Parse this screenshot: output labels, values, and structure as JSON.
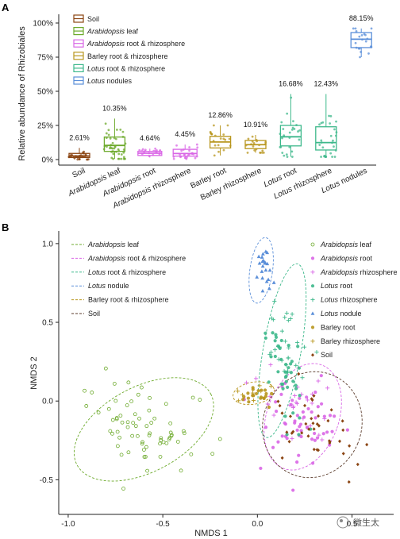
{
  "chart_data": [
    {
      "panel": "A",
      "type": "box",
      "ylabel": "Relative abundance of Rhizobiales",
      "yticks": [
        "0%",
        "25%",
        "50%",
        "75%",
        "100%"
      ],
      "ylim": [
        0,
        100
      ],
      "legend_items": [
        {
          "label": "Soil",
          "color": "#8B4513"
        },
        {
          "label": "Arabidopsis leaf",
          "color": "#6DAA2C",
          "italic_part": "Arabidopsis"
        },
        {
          "label": "Arabidopsis root & rhizosphere",
          "color": "#D966E6",
          "italic_part": "Arabidopsis"
        },
        {
          "label": "Barley root & rhizosphere",
          "color": "#B8961E"
        },
        {
          "label": "Lotus root & rhizosphere",
          "color": "#3DB88B",
          "italic_part": "Lotus"
        },
        {
          "label": "Lotus nodules",
          "color": "#5B8FD9",
          "italic_part": "Lotus"
        }
      ],
      "categories": [
        {
          "label": "Soil",
          "color": "#8B4513",
          "median_label": "2.61%",
          "median": 2.61,
          "q1": 1.5,
          "q3": 4.5,
          "whisker_low": 0,
          "whisker_high": 8.5,
          "n_points": 28
        },
        {
          "label": "Arabidopsis leaf",
          "color": "#6DAA2C",
          "median_label": "10.35%",
          "median": 10.35,
          "q1": 6,
          "q3": 16.5,
          "whisker_low": 0.5,
          "whisker_high": 30,
          "n_points": 45
        },
        {
          "label": "Arabidopsis root",
          "color": "#D966E6",
          "median_label": "4.64%",
          "median": 4.64,
          "q1": 3,
          "q3": 6,
          "whisker_low": 1.5,
          "whisker_high": 8,
          "n_points": 18
        },
        {
          "label": "Arabidopsis rhizosphere",
          "color": "#D966E6",
          "median_label": "4.45%",
          "median": 4.45,
          "q1": 2.5,
          "q3": 7.5,
          "whisker_low": 0.5,
          "whisker_high": 11,
          "n_points": 25
        },
        {
          "label": "Barley root",
          "color": "#B8961E",
          "median_label": "12.86%",
          "median": 12.86,
          "q1": 8.5,
          "q3": 17,
          "whisker_low": 3,
          "whisker_high": 25,
          "n_points": 20
        },
        {
          "label": "Barley rhizosphere",
          "color": "#B8961E",
          "median_label": "10.91%",
          "median": 10.91,
          "q1": 8,
          "q3": 14,
          "whisker_low": 5,
          "whisker_high": 18,
          "n_points": 20
        },
        {
          "label": "Lotus root",
          "color": "#3DB88B",
          "median_label": "16.68%",
          "median": 16.68,
          "q1": 10,
          "q3": 25,
          "whisker_low": 2,
          "whisker_high": 48,
          "n_points": 26
        },
        {
          "label": "Lotus rhizosphere",
          "color": "#3DB88B",
          "median_label": "12.43%",
          "median": 12.43,
          "q1": 7,
          "q3": 24,
          "whisker_low": 2,
          "whisker_high": 48,
          "n_points": 28
        },
        {
          "label": "Lotus nodules",
          "color": "#5B8FD9",
          "median_label": "88.15%",
          "median": 88.15,
          "q1": 82,
          "q3": 93,
          "whisker_low": 75,
          "whisker_high": 96,
          "n_points": 20
        }
      ]
    },
    {
      "panel": "B",
      "type": "scatter",
      "xlabel": "NMDS 1",
      "ylabel": "NMDS 2",
      "xlim": [
        -1.05,
        0.72
      ],
      "ylim": [
        -0.72,
        1.08
      ],
      "xticks": [
        "-1.0",
        "-0.5",
        "0.0",
        "0.5"
      ],
      "xtick_values": [
        -1.0,
        -0.5,
        0.0,
        0.5
      ],
      "yticks": [
        "-0.5",
        "0.0",
        "0.5",
        "1.0"
      ],
      "ytick_values": [
        -0.5,
        0.0,
        0.5,
        1.0
      ],
      "ellipse_legend": [
        {
          "label": "Arabidopsis leaf",
          "color": "#6DAA2C",
          "italic_part": "Arabidopsis"
        },
        {
          "label": "Arabidopsis root & rhizosphere",
          "color": "#D966E6",
          "italic_part": "Arabidopsis"
        },
        {
          "label": "Lotus root & rhizosphere",
          "color": "#3DB88B",
          "italic_part": "Lotus"
        },
        {
          "label": "Lotus nodule",
          "color": "#5B8FD9",
          "italic_part": "Lotus"
        },
        {
          "label": "Barley root & rhizosphere",
          "color": "#B8961E"
        },
        {
          "label": "Soil",
          "color": "#5a3a2a"
        }
      ],
      "point_legend": [
        {
          "label": "Arabidopsis leaf",
          "color": "#6DAA2C",
          "shape": "open-circle",
          "italic_part": "Arabidopsis"
        },
        {
          "label": "Arabidopsis root",
          "color": "#D966E6",
          "shape": "circle",
          "italic_part": "Arabidopsis"
        },
        {
          "label": "Arabidopsis rhizosphere",
          "color": "#D966E6",
          "shape": "plus",
          "italic_part": "Arabidopsis"
        },
        {
          "label": "Lotus root",
          "color": "#3DB88B",
          "shape": "circle",
          "italic_part": "Lotus"
        },
        {
          "label": "Lotus rhizosphere",
          "color": "#3DB88B",
          "shape": "plus",
          "italic_part": "Lotus"
        },
        {
          "label": "Lotus nodule",
          "color": "#5B8FD9",
          "shape": "triangle",
          "italic_part": "Lotus"
        },
        {
          "label": "Barley root",
          "color": "#B8961E",
          "shape": "circle"
        },
        {
          "label": "Barley rhizosphere",
          "color": "#B8961E",
          "shape": "plus"
        },
        {
          "label": "Soil",
          "color": "#8B4513",
          "shape": "diamond"
        }
      ],
      "ellipses": [
        {
          "group": "Arabidopsis leaf",
          "color": "#6DAA2C",
          "cx": -0.6,
          "cy": -0.18,
          "rx": 0.4,
          "ry": 0.27,
          "angle": -28
        },
        {
          "group": "Arabidopsis root & rhizosphere",
          "color": "#D966E6",
          "cx": 0.24,
          "cy": -0.1,
          "rx": 0.19,
          "ry": 0.35,
          "angle": 20
        },
        {
          "group": "Lotus root & rhizosphere",
          "color": "#3DB88B",
          "cx": 0.13,
          "cy": 0.32,
          "rx": 0.1,
          "ry": 0.56,
          "angle": 10
        },
        {
          "group": "Lotus nodule",
          "color": "#5B8FD9",
          "cx": 0.02,
          "cy": 0.83,
          "rx": 0.06,
          "ry": 0.21,
          "angle": 8
        },
        {
          "group": "Barley root & rhizosphere",
          "color": "#B8961E",
          "cx": -0.02,
          "cy": 0.05,
          "rx": 0.11,
          "ry": 0.07,
          "angle": -10
        },
        {
          "group": "Soil",
          "color": "#5a3a2a",
          "cx": 0.29,
          "cy": -0.15,
          "rx": 0.26,
          "ry": 0.34,
          "angle": 22
        }
      ],
      "groups": [
        {
          "name": "Arabidopsis leaf",
          "color": "#6DAA2C",
          "shape": "open-circle",
          "cx": -0.6,
          "cy": -0.18,
          "sx": 0.17,
          "sy": 0.11,
          "n": 70,
          "rot": -28
        },
        {
          "name": "Arabidopsis root",
          "color": "#D966E6",
          "shape": "circle",
          "cx": 0.23,
          "cy": -0.12,
          "sx": 0.09,
          "sy": 0.14,
          "n": 55,
          "rot": 20
        },
        {
          "name": "Arabidopsis rhizosphere",
          "color": "#D966E6",
          "shape": "plus",
          "cx": 0.22,
          "cy": -0.05,
          "sx": 0.08,
          "sy": 0.14,
          "n": 25,
          "rot": 20
        },
        {
          "name": "Lotus root",
          "color": "#3DB88B",
          "shape": "circle",
          "cx": 0.14,
          "cy": 0.2,
          "sx": 0.05,
          "sy": 0.2,
          "n": 40,
          "rot": 10
        },
        {
          "name": "Lotus rhizosphere",
          "color": "#3DB88B",
          "shape": "plus",
          "cx": 0.14,
          "cy": 0.35,
          "sx": 0.05,
          "sy": 0.18,
          "n": 30,
          "rot": 10
        },
        {
          "name": "Lotus nodule",
          "color": "#5B8FD9",
          "shape": "triangle",
          "cx": 0.03,
          "cy": 0.82,
          "sx": 0.025,
          "sy": 0.08,
          "n": 22,
          "rot": 8
        },
        {
          "name": "Barley root",
          "color": "#B8961E",
          "shape": "circle",
          "cx": -0.01,
          "cy": 0.04,
          "sx": 0.04,
          "sy": 0.03,
          "n": 22,
          "rot": 0
        },
        {
          "name": "Barley rhizosphere",
          "color": "#B8961E",
          "shape": "plus",
          "cx": -0.05,
          "cy": 0.07,
          "sx": 0.05,
          "sy": 0.03,
          "n": 8,
          "rot": 0
        },
        {
          "name": "Soil",
          "color": "#8B4513",
          "shape": "diamond",
          "cx": 0.32,
          "cy": -0.15,
          "sx": 0.1,
          "sy": 0.14,
          "n": 40,
          "rot": 22
        }
      ]
    }
  ],
  "panel_labels": {
    "a": "A",
    "b": "B"
  },
  "watermark": {
    "text": "微生太"
  }
}
